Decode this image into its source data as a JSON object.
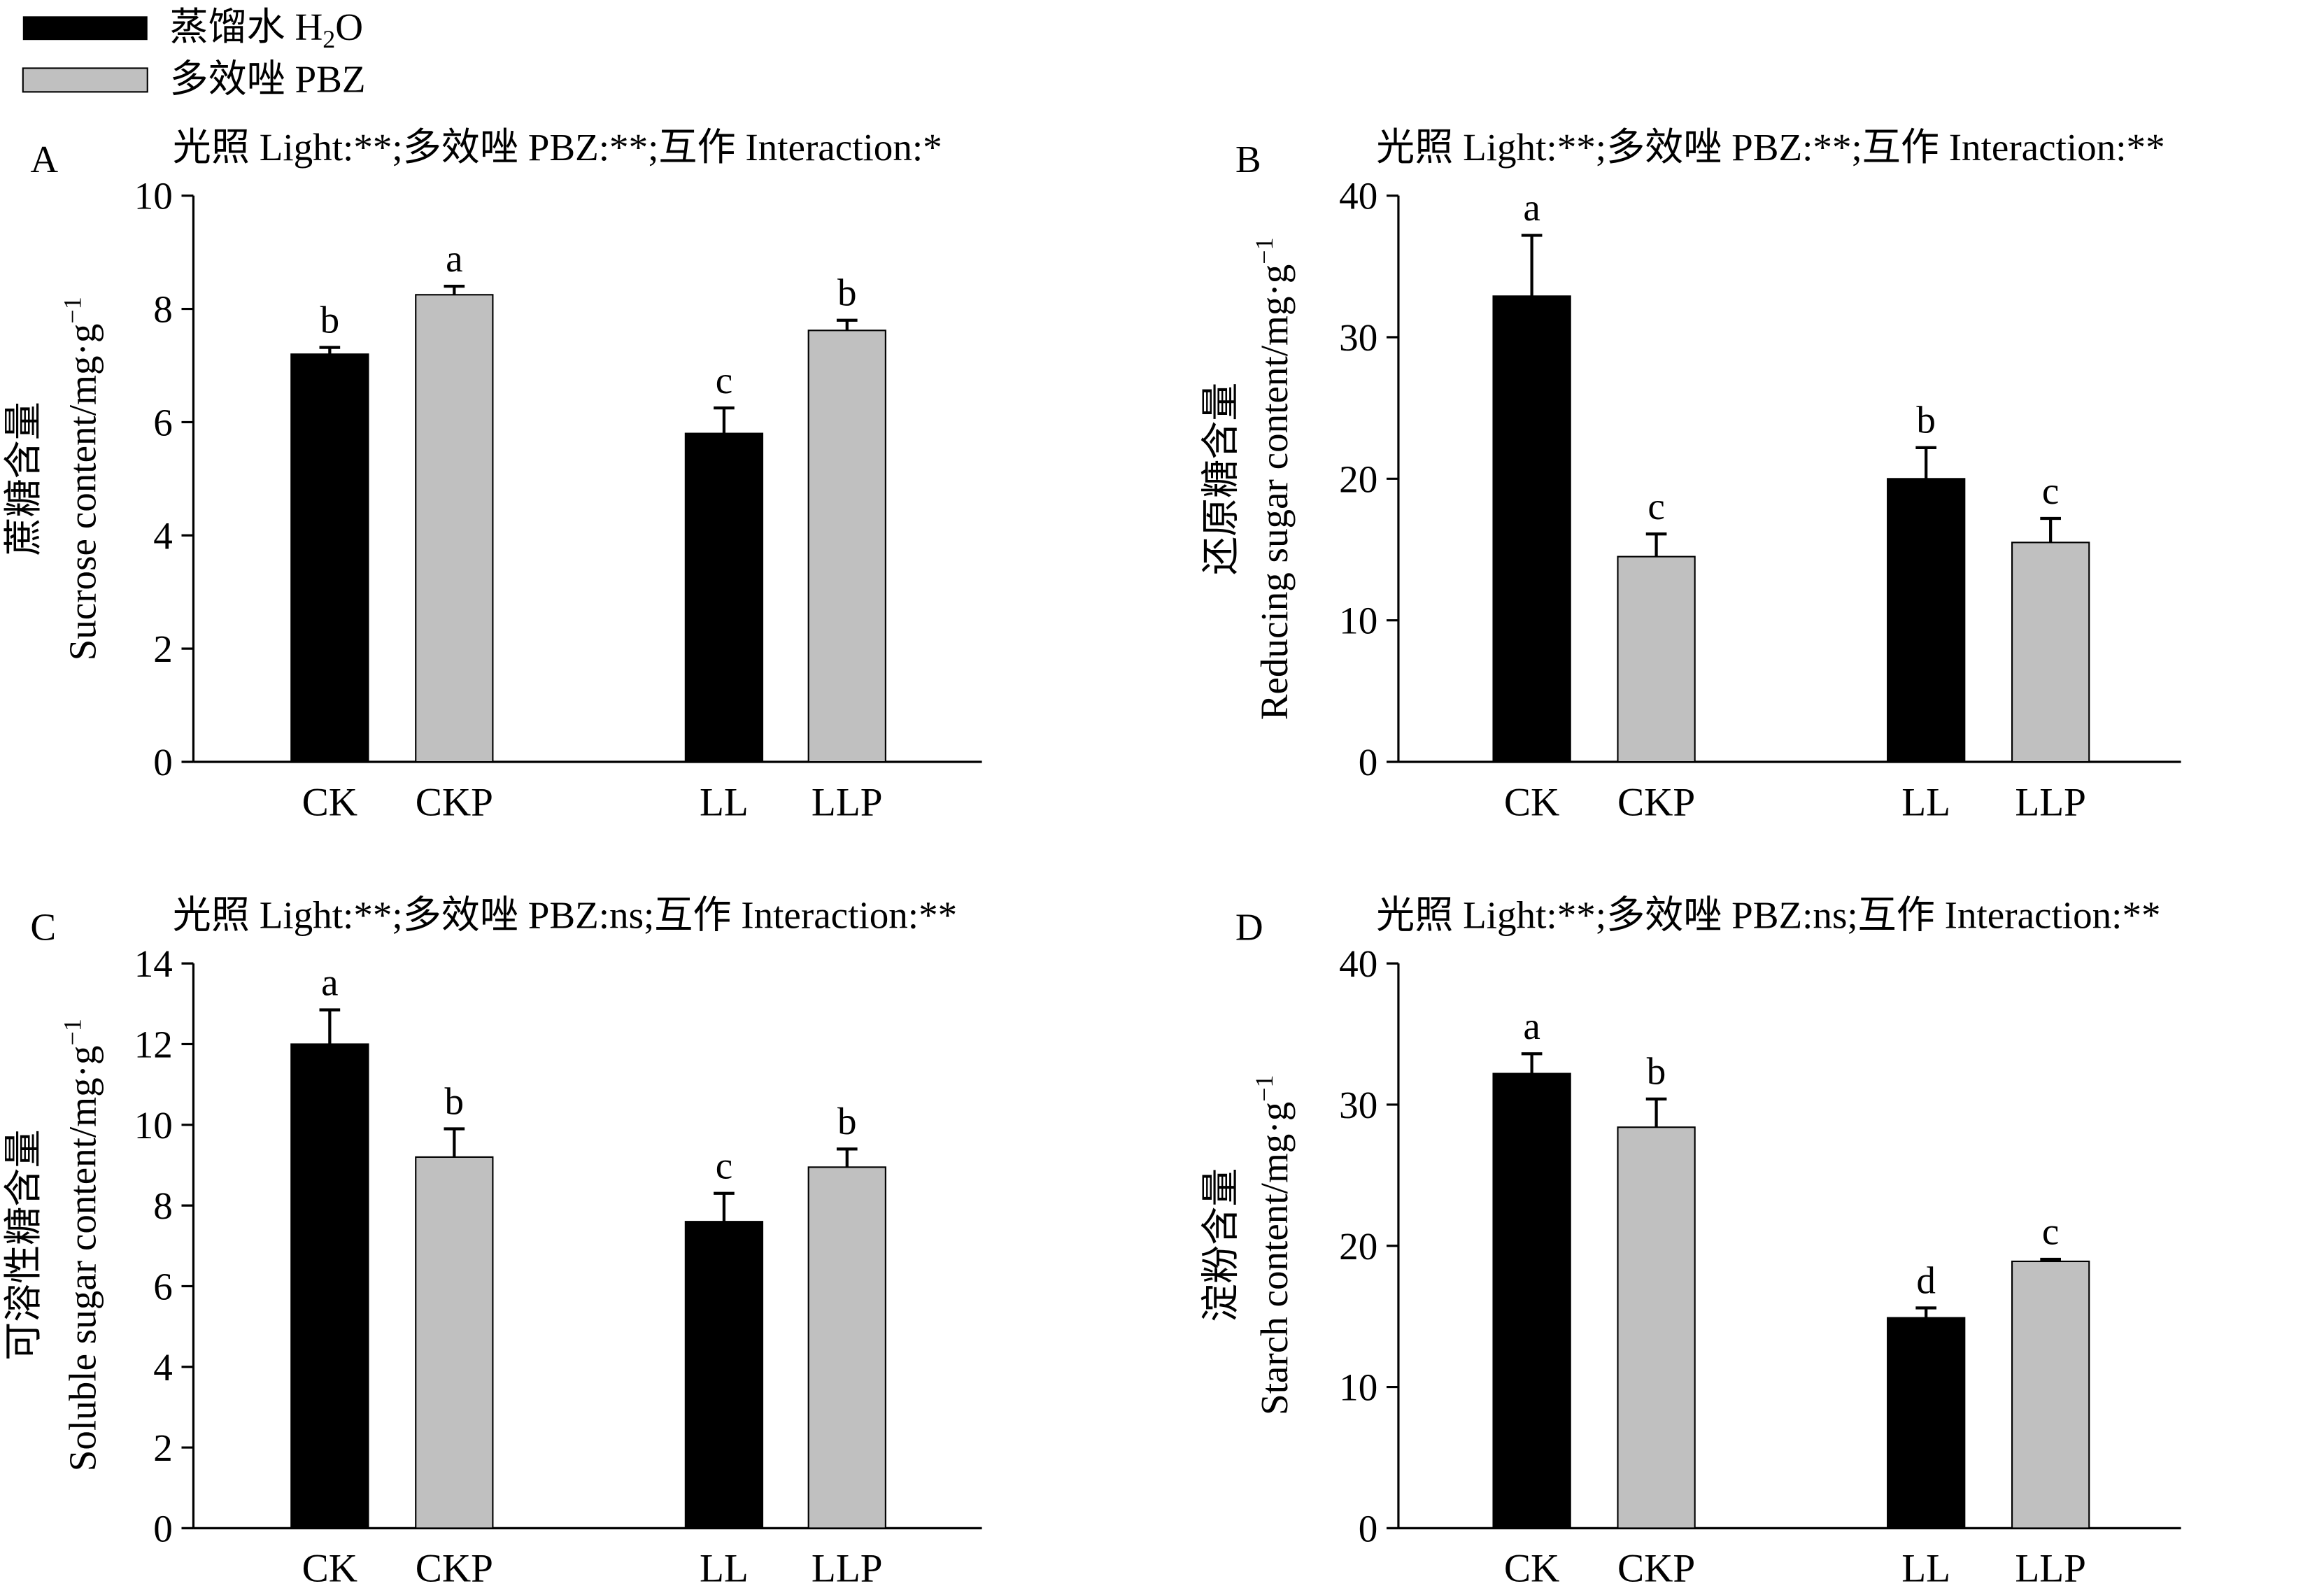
{
  "legend": {
    "items": [
      {
        "label": "蒸馏水 H2O",
        "color": "#000000"
      },
      {
        "label": "多效唑 PBZ",
        "color": "#c0c0c0"
      }
    ]
  },
  "colors": {
    "h2o": "#000000",
    "pbz": "#c0c0c0"
  },
  "chart_data": [
    {
      "panel": "A",
      "type": "bar",
      "title": "光照 Light:**;多效唑 PBZ:**;互作 Interaction:*",
      "ylabel_cn": "蔗糖含量",
      "ylabel_en": "Sucrose content/mg·g",
      "ylabel_unit_sup": "−1",
      "xlabel": "",
      "categories": [
        "CK",
        "CKP",
        "LL",
        "LLP"
      ],
      "values": [
        7.2,
        8.25,
        5.8,
        7.62
      ],
      "errors": [
        0.12,
        0.15,
        0.45,
        0.18
      ],
      "letters": [
        "b",
        "a",
        "c",
        "b"
      ],
      "series_of_bar": [
        "H2O",
        "PBZ",
        "H2O",
        "PBZ"
      ],
      "ylim": [
        0,
        10
      ],
      "yticks": [
        0,
        2,
        4,
        6,
        8,
        10
      ]
    },
    {
      "panel": "B",
      "type": "bar",
      "title": "光照 Light:**;多效唑 PBZ:**;互作 Interaction:**",
      "ylabel_cn": "还原糖含量",
      "ylabel_en": "Reducing sugar content/mg·g",
      "ylabel_unit_sup": "−1",
      "xlabel": "",
      "categories": [
        "CK",
        "CKP",
        "LL",
        "LLP"
      ],
      "values": [
        32.9,
        14.5,
        20.0,
        15.5
      ],
      "errors": [
        4.3,
        1.6,
        2.2,
        1.7
      ],
      "letters": [
        "a",
        "c",
        "b",
        "c"
      ],
      "series_of_bar": [
        "H2O",
        "PBZ",
        "H2O",
        "PBZ"
      ],
      "ylim": [
        0,
        40
      ],
      "yticks": [
        0,
        10,
        20,
        30,
        40
      ]
    },
    {
      "panel": "C",
      "type": "bar",
      "title": "光照 Light:**;多效唑 PBZ:ns;互作 Interaction:**",
      "ylabel_cn": "可溶性糖含量",
      "ylabel_en": "Soluble sugar content/mg·g",
      "ylabel_unit_sup": "−1",
      "xlabel": "",
      "categories": [
        "CK",
        "CKP",
        "LL",
        "LLP"
      ],
      "values": [
        12.0,
        9.2,
        7.6,
        8.95
      ],
      "errors": [
        0.85,
        0.7,
        0.7,
        0.45
      ],
      "letters": [
        "a",
        "b",
        "c",
        "b"
      ],
      "series_of_bar": [
        "H2O",
        "PBZ",
        "H2O",
        "PBZ"
      ],
      "ylim": [
        0,
        14
      ],
      "yticks": [
        0,
        2,
        4,
        6,
        8,
        10,
        12,
        14
      ]
    },
    {
      "panel": "D",
      "type": "bar",
      "title": "光照 Light:**;多效唑 PBZ:ns;互作 Interaction:**",
      "ylabel_cn": "淀粉含量",
      "ylabel_en": "Starch content/mg·g",
      "ylabel_unit_sup": "−1",
      "xlabel": "",
      "categories": [
        "CK",
        "CKP",
        "LL",
        "LLP"
      ],
      "values": [
        32.2,
        28.4,
        14.9,
        18.9
      ],
      "errors": [
        1.4,
        2.0,
        0.7,
        0.15
      ],
      "letters": [
        "a",
        "b",
        "d",
        "c"
      ],
      "series_of_bar": [
        "H2O",
        "PBZ",
        "H2O",
        "PBZ"
      ],
      "ylim": [
        0,
        40
      ],
      "yticks": [
        0,
        10,
        20,
        30,
        40
      ]
    }
  ]
}
